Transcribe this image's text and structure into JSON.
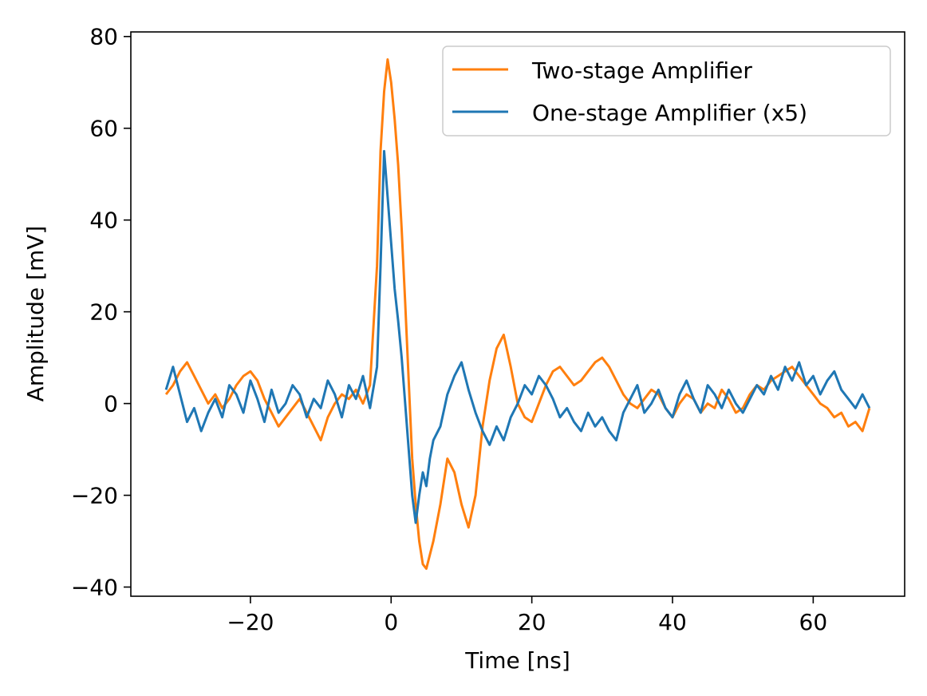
{
  "chart_data": {
    "type": "line",
    "title": "",
    "xlabel": "Time [ns]",
    "ylabel": "Amplitude [mV]",
    "xlim": [
      -37,
      73
    ],
    "ylim": [
      -42,
      81
    ],
    "xticks": [
      -20,
      0,
      20,
      40,
      60
    ],
    "yticks": [
      -40,
      -20,
      0,
      20,
      40,
      60,
      80
    ],
    "grid": false,
    "legend_position": "top-right",
    "series": [
      {
        "name": "Two-stage Amplifier",
        "color": "#ff7f0e",
        "x": [
          -32,
          -31,
          -30,
          -29,
          -28,
          -27,
          -26,
          -25,
          -24,
          -23,
          -22,
          -21,
          -20,
          -19,
          -18,
          -17,
          -16,
          -15,
          -14,
          -13,
          -12,
          -11,
          -10,
          -9,
          -8,
          -7,
          -6,
          -5,
          -4,
          -3,
          -2,
          -1.5,
          -1,
          -0.5,
          0,
          0.5,
          1,
          1.5,
          2,
          2.5,
          3,
          3.5,
          4,
          4.5,
          5,
          5.5,
          6,
          7,
          8,
          9,
          10,
          11,
          12,
          13,
          14,
          15,
          16,
          17,
          18,
          19,
          20,
          21,
          22,
          23,
          24,
          25,
          26,
          27,
          28,
          29,
          30,
          31,
          32,
          33,
          34,
          35,
          36,
          37,
          38,
          39,
          40,
          41,
          42,
          43,
          44,
          45,
          46,
          47,
          48,
          49,
          50,
          51,
          52,
          53,
          54,
          55,
          56,
          57,
          58,
          59,
          60,
          61,
          62,
          63,
          64,
          65,
          66,
          67,
          68
        ],
        "values": [
          2,
          4,
          7,
          9,
          6,
          3,
          0,
          2,
          -1,
          1,
          4,
          6,
          7,
          5,
          1,
          -2,
          -5,
          -3,
          -1,
          1,
          -2,
          -5,
          -8,
          -3,
          0,
          2,
          1,
          3,
          0,
          4,
          30,
          55,
          68,
          75,
          70,
          62,
          52,
          38,
          22,
          5,
          -12,
          -22,
          -30,
          -35,
          -36,
          -33,
          -30,
          -22,
          -12,
          -15,
          -22,
          -27,
          -20,
          -5,
          5,
          12,
          15,
          8,
          0,
          -3,
          -4,
          0,
          4,
          7,
          8,
          6,
          4,
          5,
          7,
          9,
          10,
          8,
          5,
          2,
          0,
          -1,
          1,
          3,
          2,
          -1,
          -3,
          0,
          2,
          1,
          -2,
          0,
          -1,
          3,
          1,
          -2,
          -1,
          2,
          4,
          3,
          5,
          6,
          7,
          8,
          6,
          4,
          2,
          0,
          -1,
          -3,
          -2,
          -5,
          -4,
          -6,
          -1
        ]
      },
      {
        "name": "One-stage Amplifier (x5)",
        "color": "#1f77b4",
        "x": [
          -32,
          -31,
          -30,
          -29,
          -28,
          -27,
          -26,
          -25,
          -24,
          -23,
          -22,
          -21,
          -20,
          -19,
          -18,
          -17,
          -16,
          -15,
          -14,
          -13,
          -12,
          -11,
          -10,
          -9,
          -8,
          -7,
          -6,
          -5,
          -4,
          -3,
          -2,
          -1.5,
          -1,
          -0.5,
          0,
          0.5,
          1,
          1.5,
          2,
          2.5,
          3,
          3.5,
          4,
          4.5,
          5,
          5.5,
          6,
          7,
          8,
          9,
          10,
          11,
          12,
          13,
          14,
          15,
          16,
          17,
          18,
          19,
          20,
          21,
          22,
          23,
          24,
          25,
          26,
          27,
          28,
          29,
          30,
          31,
          32,
          33,
          34,
          35,
          36,
          37,
          38,
          39,
          40,
          41,
          42,
          43,
          44,
          45,
          46,
          47,
          48,
          49,
          50,
          51,
          52,
          53,
          54,
          55,
          56,
          57,
          58,
          59,
          60,
          61,
          62,
          63,
          64,
          65,
          66,
          67,
          68
        ],
        "values": [
          3,
          8,
          2,
          -4,
          -1,
          -6,
          -2,
          1,
          -3,
          4,
          2,
          -2,
          5,
          1,
          -4,
          3,
          -2,
          0,
          4,
          2,
          -3,
          1,
          -1,
          5,
          2,
          -3,
          4,
          1,
          6,
          -1,
          8,
          30,
          55,
          45,
          35,
          25,
          18,
          10,
          0,
          -10,
          -20,
          -26,
          -20,
          -15,
          -18,
          -12,
          -8,
          -5,
          2,
          6,
          9,
          3,
          -2,
          -6,
          -9,
          -5,
          -8,
          -3,
          0,
          4,
          2,
          6,
          4,
          1,
          -3,
          -1,
          -4,
          -6,
          -2,
          -5,
          -3,
          -6,
          -8,
          -2,
          1,
          4,
          -2,
          0,
          3,
          -1,
          -3,
          2,
          5,
          1,
          -2,
          4,
          2,
          -1,
          3,
          0,
          -2,
          1,
          4,
          2,
          6,
          3,
          8,
          5,
          9,
          4,
          6,
          2,
          5,
          7,
          3,
          1,
          -1,
          2,
          -1
        ]
      }
    ]
  }
}
